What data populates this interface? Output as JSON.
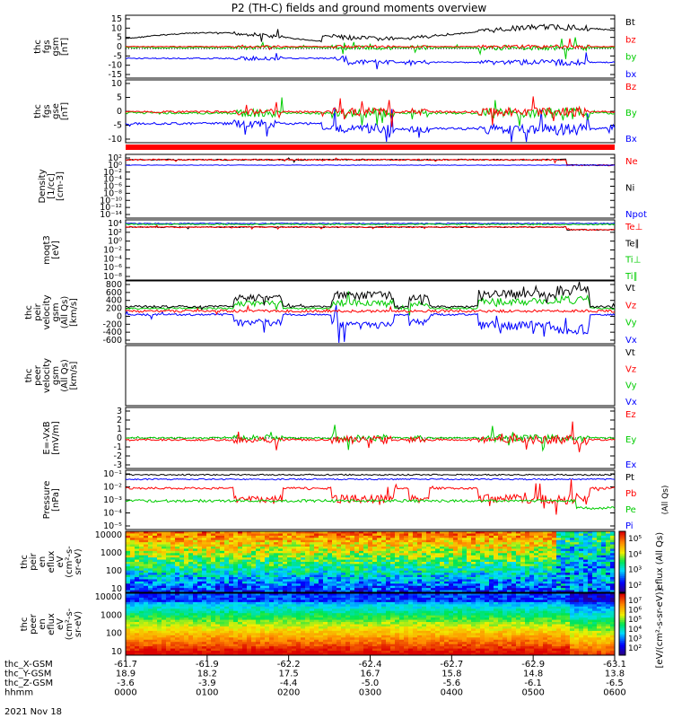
{
  "title": "P2 (TH-C) fields and ground moments overview",
  "colors": {
    "black": "#000000",
    "red": "#ff0000",
    "green": "#00cc00",
    "blue": "#0000ff"
  },
  "panels": [
    {
      "id": "fgs-gsm",
      "ylabel": [
        "thc",
        "fgs",
        "gsm",
        "[nT]"
      ],
      "yticks": [
        "15",
        "10",
        "5",
        "0",
        "-5",
        "-10",
        "-15"
      ],
      "legend": [
        {
          "text": "Bt",
          "color": "black"
        },
        {
          "text": "bz",
          "color": "red"
        },
        {
          "text": "by",
          "color": "green"
        },
        {
          "text": "bx",
          "color": "blue"
        }
      ]
    },
    {
      "id": "fgs-gse",
      "ylabel": [
        "thc",
        "fgs",
        "gse",
        "[nT]"
      ],
      "yticks": [
        "10",
        "5",
        "0",
        "-5",
        "-10"
      ],
      "legend": [
        {
          "text": "Bz",
          "color": "red"
        },
        {
          "text": "By",
          "color": "green"
        },
        {
          "text": "Bx",
          "color": "blue"
        }
      ]
    },
    {
      "id": "density",
      "ylabel": [
        "Density",
        "[1/cc]",
        "[cm-3]"
      ],
      "yticks": [
        "10²",
        "10⁰",
        "10⁻²",
        "10⁻⁴",
        "10⁻⁶",
        "10⁻⁸",
        "10⁻¹⁰",
        "10⁻¹²",
        "10⁻¹⁴"
      ],
      "legend": [
        {
          "text": "Ne",
          "color": "red"
        },
        {
          "text": "Ni",
          "color": "black"
        },
        {
          "text": "Npot",
          "color": "blue"
        }
      ]
    },
    {
      "id": "temperature",
      "ylabel": [
        "moqt3",
        "[eV]"
      ],
      "yticks": [
        "10⁴",
        "10²",
        "10⁰",
        "10⁻²",
        "10⁻⁴",
        "10⁻⁶",
        "10⁻⁸"
      ],
      "legend": [
        {
          "text": "Te⊥",
          "color": "red"
        },
        {
          "text": "Te∥",
          "color": "black"
        },
        {
          "text": "Ti⊥",
          "color": "green"
        },
        {
          "text": "Ti∥",
          "color": "green"
        }
      ]
    },
    {
      "id": "peir-velocity",
      "ylabel": [
        "thc",
        "peir",
        "velocity",
        "gsm",
        "(All Qs)",
        "[km/s]"
      ],
      "yticks": [
        "800",
        "600",
        "400",
        "200",
        "0",
        "-200",
        "-400",
        "-600"
      ],
      "legend": [
        {
          "text": "Vt",
          "color": "black"
        },
        {
          "text": "Vz",
          "color": "red"
        },
        {
          "text": "Vy",
          "color": "green"
        },
        {
          "text": "Vx",
          "color": "blue"
        }
      ]
    },
    {
      "id": "peer-velocity",
      "ylabel": [
        "thc",
        "peer",
        "velocity",
        "gsm",
        "(All Qs)",
        "[km/s]"
      ],
      "yticks": [],
      "legend": [
        {
          "text": "Vt",
          "color": "black"
        },
        {
          "text": "Vz",
          "color": "red"
        },
        {
          "text": "Vy",
          "color": "green"
        },
        {
          "text": "Vx",
          "color": "blue"
        }
      ]
    },
    {
      "id": "efield",
      "ylabel": [
        "E=-VxB",
        "[mV/m]"
      ],
      "yticks": [
        "3",
        "2",
        "1",
        "0",
        "-1",
        "-2",
        "-3"
      ],
      "legend": [
        {
          "text": "Ez",
          "color": "red"
        },
        {
          "text": "Ey",
          "color": "green"
        },
        {
          "text": "Ex",
          "color": "blue"
        }
      ]
    },
    {
      "id": "pressure",
      "ylabel": [
        "Pressure",
        "[nPa]"
      ],
      "yticks": [
        "10⁻¹",
        "10⁻²",
        "10⁻³",
        "10⁻⁴",
        "10⁻⁵"
      ],
      "legend": [
        {
          "text": "Pt",
          "color": "black"
        },
        {
          "text": "Pb",
          "color": "red"
        },
        {
          "text": "Pe",
          "color": "green"
        },
        {
          "text": "Pi",
          "color": "blue"
        }
      ],
      "side_note": "(All Qs)"
    },
    {
      "id": "peir-spectrogram",
      "ylabel": [
        "thc",
        "peir",
        "en",
        "eflux",
        "eV",
        "(cm²-s-",
        "sr-eV)"
      ],
      "yticks": [
        "10000",
        "1000",
        "100",
        "10"
      ],
      "colorbar_ticks": [
        "10⁵",
        "10⁴",
        "10³",
        "10²"
      ]
    },
    {
      "id": "peer-spectrogram",
      "ylabel": [
        "thc",
        "peer",
        "en",
        "eflux",
        "eV",
        "(cm²-s-",
        "sr-eV)"
      ],
      "yticks": [
        "10000",
        "1000",
        "100",
        "10"
      ],
      "colorbar_ticks": [
        "10⁷",
        "10⁶",
        "10⁵",
        "10⁴",
        "10³",
        "10²"
      ]
    }
  ],
  "colorbar_label": "[eV/(cm²-s-sr-eV)]",
  "colorbar_label_peir": "eflux (All Qs)",
  "xaxis": {
    "rows": [
      {
        "label": "thc_X-GSM",
        "values": [
          "-61.7",
          "-61.9",
          "-62.2",
          "-62.4",
          "-62.7",
          "-62.9",
          "-63.1"
        ]
      },
      {
        "label": "thc_Y-GSM",
        "values": [
          "18.9",
          "18.2",
          "17.5",
          "16.7",
          "15.8",
          "14.8",
          "13.8"
        ]
      },
      {
        "label": "thc_Z-GSM",
        "values": [
          "-3.6",
          "-3.9",
          "-4.4",
          "-5.0",
          "-5.6",
          "-6.1",
          "-6.5"
        ]
      },
      {
        "label": "hhmm",
        "values": [
          "0000",
          "0100",
          "0200",
          "0300",
          "0400",
          "0500",
          "0600"
        ]
      }
    ],
    "date": "2021 Nov 18"
  },
  "chart_data": {
    "type": "line",
    "title": "P2 (TH-C) fields and ground moments overview",
    "x": [
      "0000",
      "0100",
      "0200",
      "0300",
      "0400",
      "0500",
      "0600"
    ],
    "xlabel": "hhmm",
    "panels": [
      {
        "name": "fgs gsm",
        "ylim": [
          -15,
          15
        ],
        "series": [
          {
            "name": "Bt",
            "values": [
              6,
              5,
              7,
              10,
              9,
              9,
              10
            ]
          },
          {
            "name": "bz",
            "values": [
              1,
              1,
              1,
              1,
              1,
              1,
              -1
            ]
          },
          {
            "name": "by",
            "values": [
              0,
              1,
              -1,
              -3,
              -2,
              -3,
              -2
            ]
          },
          {
            "name": "bx",
            "values": [
              -5,
              -4,
              -5,
              -7,
              -7,
              -7,
              -10
            ]
          }
        ]
      },
      {
        "name": "fgs gse",
        "ylim": [
          -10,
          10
        ],
        "series": [
          {
            "name": "Bz",
            "values": [
              1,
              1,
              1,
              1,
              1,
              1,
              1
            ]
          },
          {
            "name": "By",
            "values": [
              0,
              1,
              -1,
              -2,
              -1,
              -2,
              0
            ]
          },
          {
            "name": "Bx",
            "values": [
              -5,
              -3,
              -4,
              -6,
              -6,
              -6,
              -8
            ]
          }
        ]
      },
      {
        "name": "peir velocity",
        "ylim": [
          -600,
          800
        ],
        "series": [
          {
            "name": "Vt",
            "values": [
              50,
              50,
              150,
              200,
              200,
              250,
              0
            ]
          },
          {
            "name": "Vz",
            "values": [
              0,
              0,
              0,
              0,
              0,
              0,
              0
            ]
          },
          {
            "name": "Vy",
            "values": [
              0,
              0,
              100,
              100,
              80,
              100,
              0
            ]
          },
          {
            "name": "Vx",
            "values": [
              -50,
              -50,
              -100,
              -200,
              -200,
              -250,
              0
            ]
          }
        ]
      },
      {
        "name": "E=-VxB",
        "ylim": [
          -3,
          3
        ],
        "series": [
          {
            "name": "Ez",
            "values": [
              0,
              0,
              0,
              0,
              0,
              0,
              0
            ]
          },
          {
            "name": "Ey",
            "values": [
              0,
              0,
              0,
              0,
              0,
              0,
              0
            ]
          }
        ]
      }
    ]
  }
}
